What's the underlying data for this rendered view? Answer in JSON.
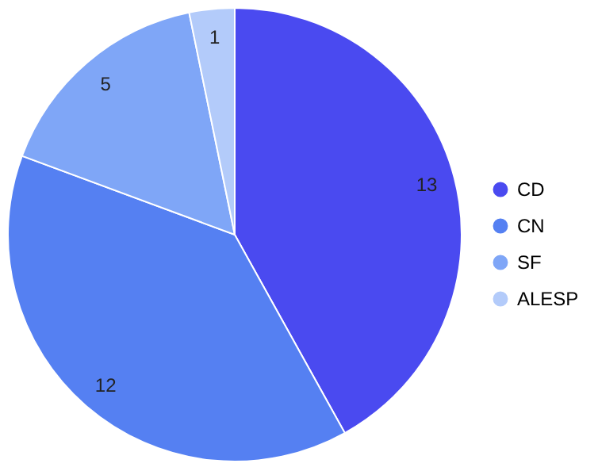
{
  "chart_data": {
    "type": "pie",
    "categories": [
      "CD",
      "CN",
      "SF",
      "ALESP"
    ],
    "values": [
      13,
      12,
      5,
      1
    ],
    "colors": [
      "#4a4af0",
      "#5580f2",
      "#7fa6f7",
      "#b3cbfa"
    ],
    "data_labels": true,
    "legend": "right"
  }
}
